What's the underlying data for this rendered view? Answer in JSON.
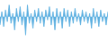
{
  "chart_data": {
    "type": "area",
    "values": [
      -2.5,
      1.5,
      -3.0,
      2.0,
      -1.5,
      3.5,
      -2.0,
      1.0,
      -4.0,
      2.5,
      -1.5,
      3.0,
      -2.5,
      1.5,
      -5.5,
      3.5,
      -2.0,
      1.0,
      -3.5,
      2.0,
      -1.5,
      2.5,
      -2.0,
      1.5,
      -3.0,
      2.0,
      -1.0,
      3.0,
      -2.5,
      1.5,
      -4.0,
      2.5,
      -2.0,
      1.5,
      -3.5,
      2.5,
      -1.5,
      2.0,
      -3.0,
      1.5,
      -2.0,
      2.5,
      -1.5,
      1.0,
      -2.5,
      2.0,
      -1.5,
      1.5,
      -2.0,
      1.0,
      -3.5,
      2.5,
      -2.0,
      1.5,
      -3.0,
      2.0,
      -1.5,
      1.0,
      -2.5,
      1.5
    ],
    "color": "#5aaee0",
    "ylim": [
      -7,
      5
    ],
    "grid": false,
    "tick_labels": false
  }
}
